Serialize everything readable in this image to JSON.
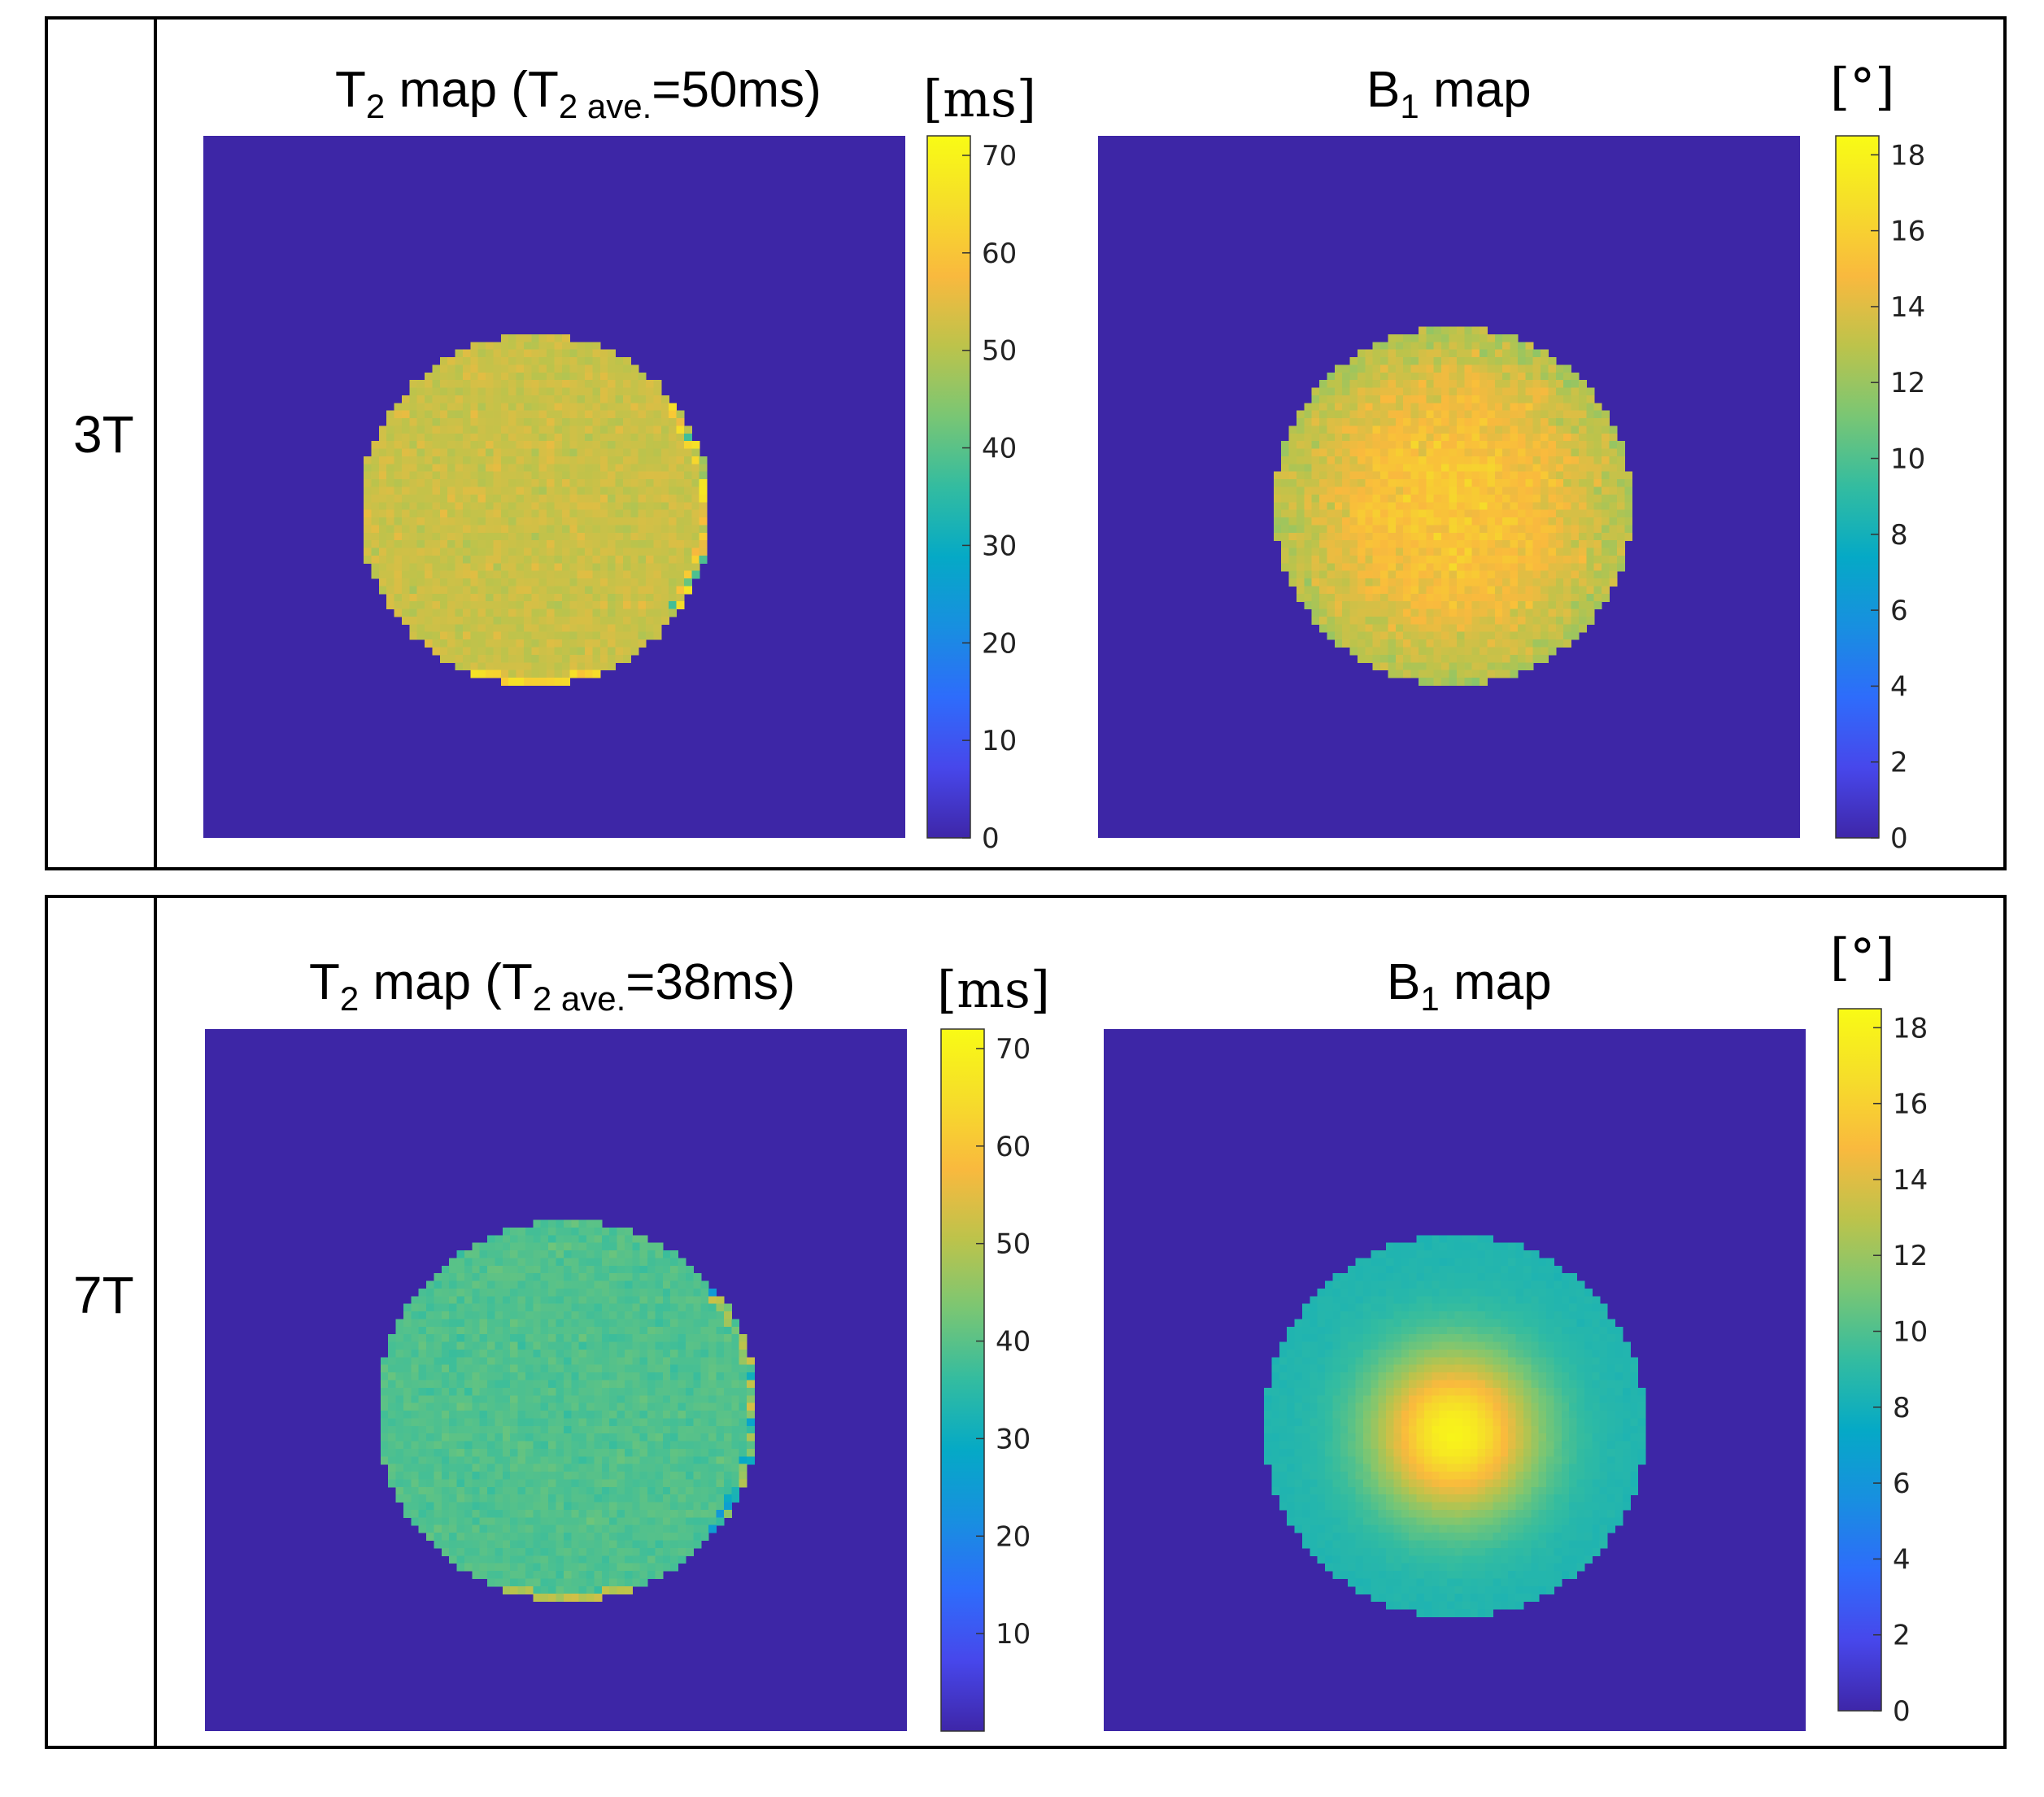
{
  "figure": {
    "rows": [
      {
        "label": "3T",
        "panels": [
          {
            "id": "t2_3t",
            "title_pre": "T",
            "title_sub": "2",
            "title_mid": " map (T",
            "title_sub2": "2 ave.",
            "title_post": "=50ms)",
            "unit": "[ms]",
            "colorbar": {
              "min": 0,
              "max": 72,
              "ticks": [
                {
                  "v": 0,
                  "t": "0"
                },
                {
                  "v": 10,
                  "t": "10"
                },
                {
                  "v": 20,
                  "t": "20"
                },
                {
                  "v": 30,
                  "t": "30"
                },
                {
                  "v": 40,
                  "t": "40"
                },
                {
                  "v": 50,
                  "t": "50"
                },
                {
                  "v": 60,
                  "t": "60"
                },
                {
                  "v": 70,
                  "t": "70"
                }
              ]
            },
            "phantom": {
              "value": 52,
              "noise": 2.5,
              "grid": 92,
              "radius_cells": 23,
              "center_cells": [
                43.5,
                49
              ],
              "kind": "t2",
              "edge_artifact": "right"
            }
          },
          {
            "id": "b1_3t",
            "title_pre": "B",
            "title_sub": "1",
            "title_mid": " map",
            "title_sub2": "",
            "title_post": "",
            "unit": "[°]",
            "colorbar": {
              "min": 0,
              "max": 18.5,
              "ticks": [
                {
                  "v": 0,
                  "t": "0"
                },
                {
                  "v": 2,
                  "t": "2"
                },
                {
                  "v": 4,
                  "t": "4"
                },
                {
                  "v": 6,
                  "t": "6"
                },
                {
                  "v": 8,
                  "t": "8"
                },
                {
                  "v": 10,
                  "t": "10"
                },
                {
                  "v": 12,
                  "t": "12"
                },
                {
                  "v": 14,
                  "t": "14"
                },
                {
                  "v": 16,
                  "t": "16"
                },
                {
                  "v": 18,
                  "t": "18"
                }
              ]
            },
            "phantom": {
              "value_center": 15.5,
              "value_edge": 12.5,
              "noise": 0.9,
              "grid": 92,
              "radius_cells": 23.5,
              "center_cells": [
                46.5,
                48.5
              ],
              "kind": "b1_mild"
            }
          }
        ]
      },
      {
        "label": "7T",
        "panels": [
          {
            "id": "t2_7t",
            "title_pre": "T",
            "title_sub": "2",
            "title_mid": " map (T",
            "title_sub2": "2 ave.",
            "title_post": "=38ms)",
            "unit": "[ms]",
            "colorbar": {
              "min": 0,
              "max": 72,
              "ticks": [
                {
                  "v": 10,
                  "t": "10"
                },
                {
                  "v": 20,
                  "t": "20"
                },
                {
                  "v": 30,
                  "t": "30"
                },
                {
                  "v": 40,
                  "t": "40"
                },
                {
                  "v": 50,
                  "t": "50"
                },
                {
                  "v": 60,
                  "t": "60"
                },
                {
                  "v": 70,
                  "t": "70"
                }
              ]
            },
            "phantom": {
              "value": 39,
              "noise": 2.0,
              "grid": 92,
              "radius_cells": 25,
              "center_cells": [
                47.5,
                50
              ],
              "kind": "t2",
              "edge_artifact": "right"
            }
          },
          {
            "id": "b1_7t",
            "title_pre": "B",
            "title_sub": "1",
            "title_mid": " map",
            "title_sub2": "",
            "title_post": "",
            "unit": "[°]",
            "colorbar": {
              "min": 0,
              "max": 18.5,
              "ticks": [
                {
                  "v": 0,
                  "t": "0"
                },
                {
                  "v": 2,
                  "t": "2"
                },
                {
                  "v": 4,
                  "t": "4"
                },
                {
                  "v": 6,
                  "t": "6"
                },
                {
                  "v": 8,
                  "t": "8"
                },
                {
                  "v": 10,
                  "t": "10"
                },
                {
                  "v": 12,
                  "t": "12"
                },
                {
                  "v": 14,
                  "t": "14"
                },
                {
                  "v": 16,
                  "t": "16"
                },
                {
                  "v": 18,
                  "t": "18"
                }
              ]
            },
            "phantom": {
              "value_center": 18,
              "value_edge": 8.5,
              "noise": 0.15,
              "grid": 92,
              "radius_cells": 25,
              "center_cells": [
                46,
                52
              ],
              "kind": "b1_strong"
            }
          }
        ]
      }
    ]
  },
  "chart_data": [
    {
      "type": "heatmap",
      "title": "T2 map (T2 ave.=50ms)",
      "row": "3T",
      "unit": "ms",
      "clim": [
        0,
        72
      ],
      "average": 50,
      "ticks": [
        0,
        10,
        20,
        30,
        40,
        50,
        60,
        70
      ]
    },
    {
      "type": "heatmap",
      "title": "B1 map",
      "row": "3T",
      "unit": "°",
      "clim": [
        0,
        18.5
      ],
      "ticks": [
        0,
        2,
        4,
        6,
        8,
        10,
        12,
        14,
        16,
        18
      ]
    },
    {
      "type": "heatmap",
      "title": "T2 map (T2 ave.=38ms)",
      "row": "7T",
      "unit": "ms",
      "clim": [
        0,
        72
      ],
      "average": 38,
      "ticks": [
        10,
        20,
        30,
        40,
        50,
        60,
        70
      ]
    },
    {
      "type": "heatmap",
      "title": "B1 map",
      "row": "7T",
      "unit": "°",
      "clim": [
        0,
        18.5
      ],
      "ticks": [
        0,
        2,
        4,
        6,
        8,
        10,
        12,
        14,
        16,
        18
      ]
    }
  ],
  "colors": {
    "background_map": "#3d26a6",
    "frame": "#000000"
  }
}
